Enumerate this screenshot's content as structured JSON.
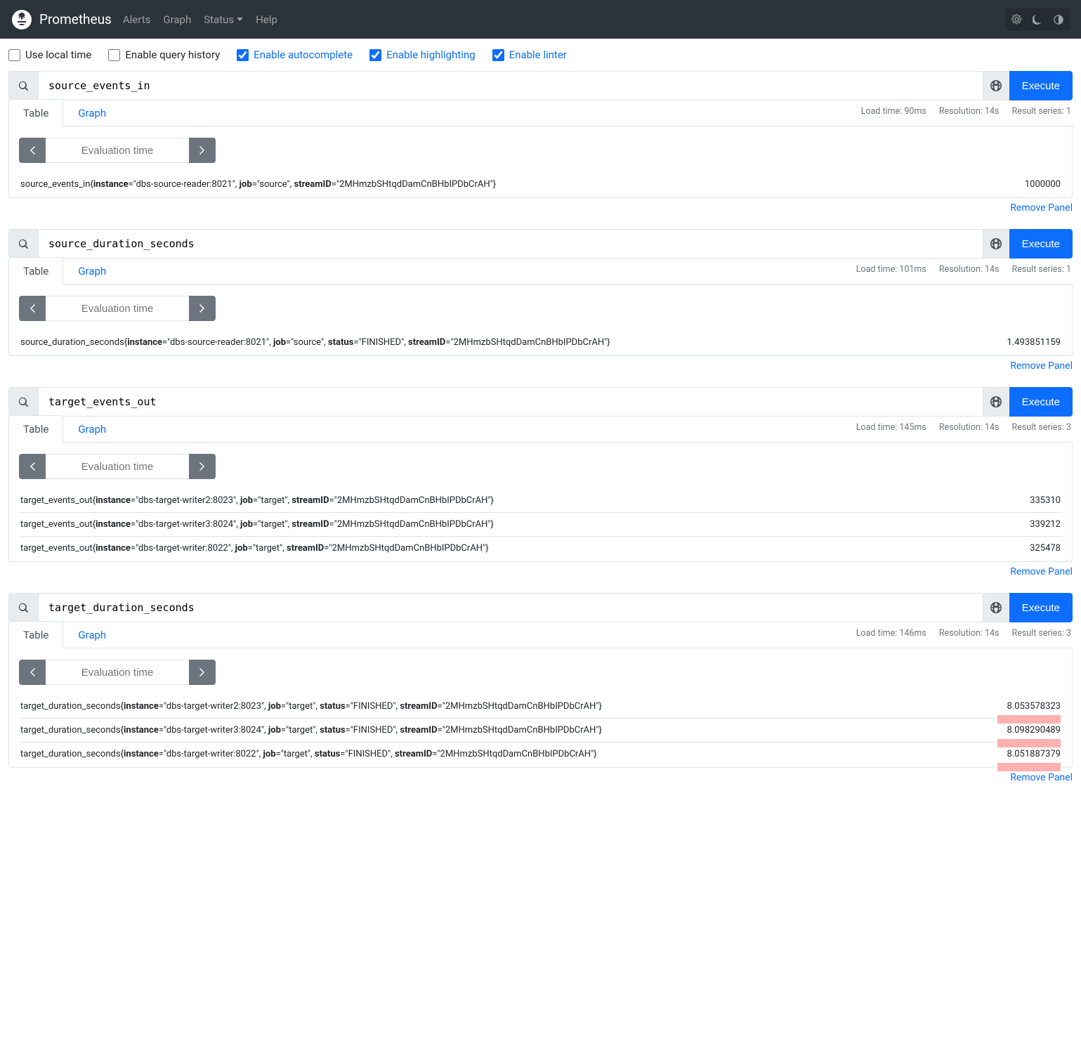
{
  "nav": {
    "brand": "Prometheus",
    "links": [
      "Alerts",
      "Graph",
      "Status",
      "Help"
    ]
  },
  "options": [
    {
      "label": "Use local time",
      "checked": false
    },
    {
      "label": "Enable query history",
      "checked": false
    },
    {
      "label": "Enable autocomplete",
      "checked": true
    },
    {
      "label": "Enable highlighting",
      "checked": true
    },
    {
      "label": "Enable linter",
      "checked": true
    }
  ],
  "ui": {
    "execute": "Execute",
    "table_tab": "Table",
    "graph_tab": "Graph",
    "eval_placeholder": "Evaluation time",
    "remove_panel": "Remove Panel",
    "load_prefix": "Load time: ",
    "res_prefix": "Resolution: ",
    "series_prefix": "Result series: "
  },
  "panels": [
    {
      "query": "source_events_in",
      "load_time": "90ms",
      "resolution": "14s",
      "result_series": "1",
      "results": [
        {
          "metric": "source_events_in",
          "labels": [
            [
              "instance",
              "dbs-source-reader:8021"
            ],
            [
              "job",
              "source"
            ],
            [
              "streamID",
              "2MHmzbSHtqdDamCnBHbIPDbCrAH"
            ]
          ],
          "value": "1000000",
          "highlight": false
        }
      ]
    },
    {
      "query": "source_duration_seconds",
      "load_time": "101ms",
      "resolution": "14s",
      "result_series": "1",
      "results": [
        {
          "metric": "source_duration_seconds",
          "labels": [
            [
              "instance",
              "dbs-source-reader:8021"
            ],
            [
              "job",
              "source"
            ],
            [
              "status",
              "FINISHED"
            ],
            [
              "streamID",
              "2MHmzbSHtqdDamCnBHbIPDbCrAH"
            ]
          ],
          "value": "1.493851159",
          "highlight": false
        }
      ]
    },
    {
      "query": "target_events_out",
      "load_time": "145ms",
      "resolution": "14s",
      "result_series": "3",
      "results": [
        {
          "metric": "target_events_out",
          "labels": [
            [
              "instance",
              "dbs-target-writer2:8023"
            ],
            [
              "job",
              "target"
            ],
            [
              "streamID",
              "2MHmzbSHtqdDamCnBHbIPDbCrAH"
            ]
          ],
          "value": "335310",
          "highlight": false
        },
        {
          "metric": "target_events_out",
          "labels": [
            [
              "instance",
              "dbs-target-writer3:8024"
            ],
            [
              "job",
              "target"
            ],
            [
              "streamID",
              "2MHmzbSHtqdDamCnBHbIPDbCrAH"
            ]
          ],
          "value": "339212",
          "highlight": false
        },
        {
          "metric": "target_events_out",
          "labels": [
            [
              "instance",
              "dbs-target-writer:8022"
            ],
            [
              "job",
              "target"
            ],
            [
              "streamID",
              "2MHmzbSHtqdDamCnBHbIPDbCrAH"
            ]
          ],
          "value": "325478",
          "highlight": false
        }
      ]
    },
    {
      "query": "target_duration_seconds",
      "load_time": "146ms",
      "resolution": "14s",
      "result_series": "3",
      "results": [
        {
          "metric": "target_duration_seconds",
          "labels": [
            [
              "instance",
              "dbs-target-writer2:8023"
            ],
            [
              "job",
              "target"
            ],
            [
              "status",
              "FINISHED"
            ],
            [
              "streamID",
              "2MHmzbSHtqdDamCnBHbIPDbCrAH"
            ]
          ],
          "value": "8.053578323",
          "highlight": true
        },
        {
          "metric": "target_duration_seconds",
          "labels": [
            [
              "instance",
              "dbs-target-writer3:8024"
            ],
            [
              "job",
              "target"
            ],
            [
              "status",
              "FINISHED"
            ],
            [
              "streamID",
              "2MHmzbSHtqdDamCnBHbIPDbCrAH"
            ]
          ],
          "value": "8.098290489",
          "highlight": true
        },
        {
          "metric": "target_duration_seconds",
          "labels": [
            [
              "instance",
              "dbs-target-writer:8022"
            ],
            [
              "job",
              "target"
            ],
            [
              "status",
              "FINISHED"
            ],
            [
              "streamID",
              "2MHmzbSHtqdDamCnBHbIPDbCrAH"
            ]
          ],
          "value": "8.051887379",
          "highlight": true
        }
      ]
    }
  ]
}
